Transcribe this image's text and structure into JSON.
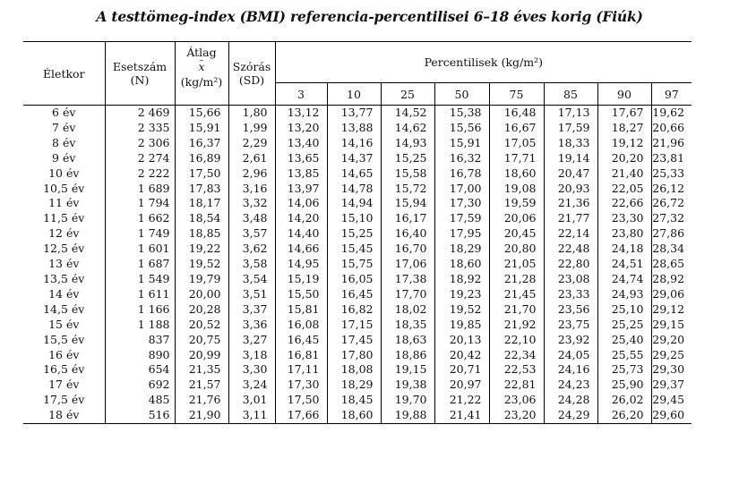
{
  "title": "A testtömeg-index (BMI) referencia-percentilisei 6–18 éves korig (Fiúk)",
  "headers": {
    "age": "Életkor",
    "n_line1": "Esetszám",
    "n_line2": "(N)",
    "mean_line1": "Átlag",
    "mean_symbol": "x",
    "mean_unit": "(kg/m²)",
    "sd_line1": "Szórás",
    "sd_line2": "(SD)",
    "percentiles": "Percentilisek (kg/m²)",
    "percentile_levels": [
      "3",
      "10",
      "25",
      "50",
      "75",
      "85",
      "90",
      "97"
    ]
  },
  "rows": [
    [
      "6 év",
      "2 469",
      "15,66",
      "1,80",
      "13,12",
      "13,77",
      "14,52",
      "15,38",
      "16,48",
      "17,13",
      "17,67",
      "19,62"
    ],
    [
      "7 év",
      "2 335",
      "15,91",
      "1,99",
      "13,20",
      "13,88",
      "14,62",
      "15,56",
      "16,67",
      "17,59",
      "18,27",
      "20,66"
    ],
    [
      "8 év",
      "2 306",
      "16,37",
      "2,29",
      "13,40",
      "14,16",
      "14,93",
      "15,91",
      "17,05",
      "18,33",
      "19,12",
      "21,96"
    ],
    [
      "9 év",
      "2 274",
      "16,89",
      "2,61",
      "13,65",
      "14,37",
      "15,25",
      "16,32",
      "17,71",
      "19,14",
      "20,20",
      "23,81"
    ],
    [
      "10 év",
      "2 222",
      "17,50",
      "2,96",
      "13,85",
      "14,65",
      "15,58",
      "16,78",
      "18,60",
      "20,47",
      "21,40",
      "25,33"
    ],
    [
      "10,5 év",
      "1 689",
      "17,83",
      "3,16",
      "13,97",
      "14,78",
      "15,72",
      "17,00",
      "19,08",
      "20,93",
      "22,05",
      "26,12"
    ],
    [
      "11 év",
      "1 794",
      "18,17",
      "3,32",
      "14,06",
      "14,94",
      "15,94",
      "17,30",
      "19,59",
      "21,36",
      "22,66",
      "26,72"
    ],
    [
      "11,5 év",
      "1 662",
      "18,54",
      "3,48",
      "14,20",
      "15,10",
      "16,17",
      "17,59",
      "20,06",
      "21,77",
      "23,30",
      "27,32"
    ],
    [
      "12 év",
      "1 749",
      "18,85",
      "3,57",
      "14,40",
      "15,25",
      "16,40",
      "17,95",
      "20,45",
      "22,14",
      "23,80",
      "27,86"
    ],
    [
      "12,5 év",
      "1 601",
      "19,22",
      "3,62",
      "14,66",
      "15,45",
      "16,70",
      "18,29",
      "20,80",
      "22,48",
      "24,18",
      "28,34"
    ],
    [
      "13 év",
      "1 687",
      "19,52",
      "3,58",
      "14,95",
      "15,75",
      "17,06",
      "18,60",
      "21,05",
      "22,80",
      "24,51",
      "28,65"
    ],
    [
      "13,5 év",
      "1 549",
      "19,79",
      "3,54",
      "15,19",
      "16,05",
      "17,38",
      "18,92",
      "21,28",
      "23,08",
      "24,74",
      "28,92"
    ],
    [
      "14 év",
      "1 611",
      "20,00",
      "3,51",
      "15,50",
      "16,45",
      "17,70",
      "19,23",
      "21,45",
      "23,33",
      "24,93",
      "29,06"
    ],
    [
      "14,5 év",
      "1 166",
      "20,28",
      "3,37",
      "15,81",
      "16,82",
      "18,02",
      "19,52",
      "21,70",
      "23,56",
      "25,10",
      "29,12"
    ],
    [
      "15 év",
      "1 188",
      "20,52",
      "3,36",
      "16,08",
      "17,15",
      "18,35",
      "19,85",
      "21,92",
      "23,75",
      "25,25",
      "29,15"
    ],
    [
      "15,5 év",
      "837",
      "20,75",
      "3,27",
      "16,45",
      "17,45",
      "18,63",
      "20,13",
      "22,10",
      "23,92",
      "25,40",
      "29,20"
    ],
    [
      "16 év",
      "890",
      "20,99",
      "3,18",
      "16,81",
      "17,80",
      "18,86",
      "20,42",
      "22,34",
      "24,05",
      "25,55",
      "29,25"
    ],
    [
      "16,5 év",
      "654",
      "21,35",
      "3,30",
      "17,11",
      "18,08",
      "19,15",
      "20,71",
      "22,53",
      "24,16",
      "25,73",
      "29,30"
    ],
    [
      "17 év",
      "692",
      "21,57",
      "3,24",
      "17,30",
      "18,29",
      "19,38",
      "20,97",
      "22,81",
      "24,23",
      "25,90",
      "29,37"
    ],
    [
      "17,5 év",
      "485",
      "21,76",
      "3,01",
      "17,50",
      "18,45",
      "19,70",
      "21,22",
      "23,06",
      "24,28",
      "26,02",
      "29,45"
    ],
    [
      "18 év",
      "516",
      "21,90",
      "3,11",
      "17,66",
      "18,60",
      "19,88",
      "21,41",
      "23,20",
      "24,29",
      "26,20",
      "29,60"
    ]
  ]
}
